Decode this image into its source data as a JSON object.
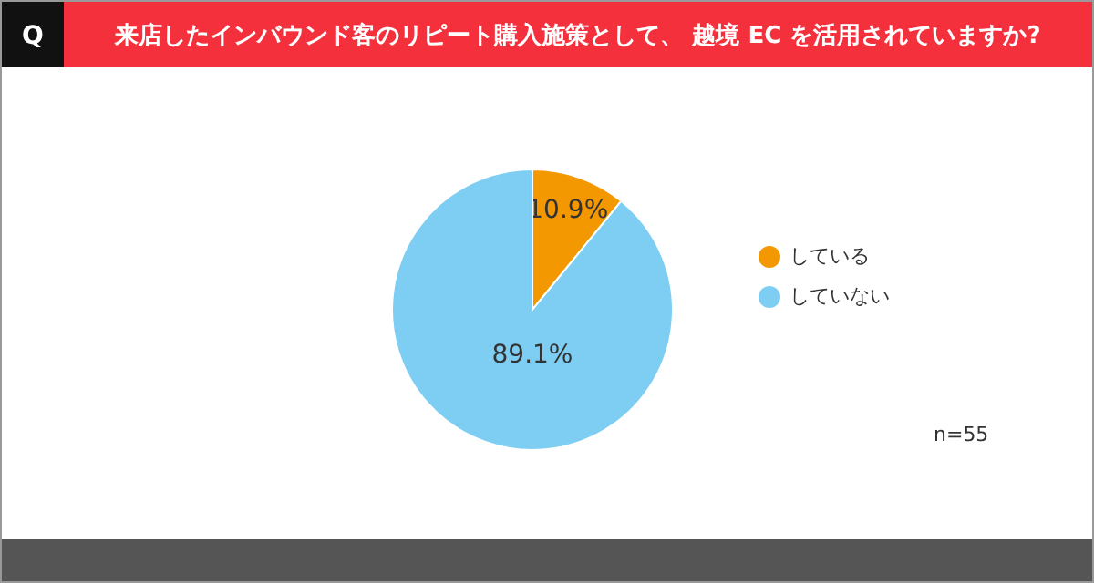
{
  "chart_data": {
    "type": "pie",
    "title": "来店したインバウンド客のリピート購入施策として、 越境 EC を活用されていますか?",
    "categories": [
      "している",
      "していない"
    ],
    "values": [
      10.9,
      89.1
    ],
    "colors": [
      "#f39800",
      "#7ecef4"
    ],
    "value_labels": [
      "10.9%",
      "89.1%"
    ],
    "legend": "right",
    "annotations": [
      "Q",
      "n=55"
    ]
  }
}
